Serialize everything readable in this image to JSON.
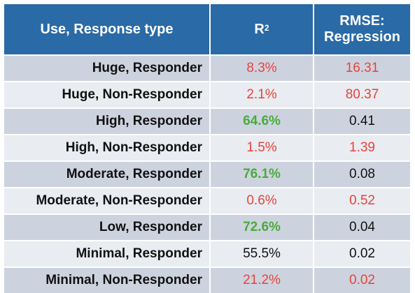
{
  "chart_data": {
    "type": "table",
    "columns": [
      "Use, Response type",
      "R²",
      "RMSE: Regression"
    ],
    "header": {
      "col1": "Use, Response type",
      "col2_base": "R",
      "col2_sup": "2",
      "col3_line1": "RMSE:",
      "col3_line2": "Regression"
    },
    "rows": [
      {
        "label": "Huge, Responder",
        "r2": "8.3%",
        "r2_color": "#e8423c",
        "rmse": "16.31",
        "rmse_color": "#e8423c"
      },
      {
        "label": "Huge, Non-Responder",
        "r2": "2.1%",
        "r2_color": "#e8423c",
        "rmse": "80.37",
        "rmse_color": "#e8423c"
      },
      {
        "label": "High, Responder",
        "r2": "64.6%",
        "r2_color": "#4aab3c",
        "r2_bold": true,
        "rmse": "0.41",
        "rmse_color": "#111111"
      },
      {
        "label": "High, Non-Responder",
        "r2": "1.5%",
        "r2_color": "#e8423c",
        "rmse": "1.39",
        "rmse_color": "#e8423c"
      },
      {
        "label": "Moderate, Responder",
        "r2": "76.1%",
        "r2_color": "#4aab3c",
        "r2_bold": true,
        "rmse": "0.08",
        "rmse_color": "#111111"
      },
      {
        "label": "Moderate, Non-Responder",
        "r2": "0.6%",
        "r2_color": "#e8423c",
        "rmse": "0.52",
        "rmse_color": "#e8423c"
      },
      {
        "label": "Low, Responder",
        "r2": "72.6%",
        "r2_color": "#4aab3c",
        "r2_bold": true,
        "rmse": "0.04",
        "rmse_color": "#111111"
      },
      {
        "label": "Minimal, Responder",
        "r2": "55.5%",
        "r2_color": "#111111",
        "rmse": "0.02",
        "rmse_color": "#111111"
      },
      {
        "label": "Minimal, Non-Responder",
        "r2": "21.2%",
        "r2_color": "#e8423c",
        "rmse": "0.02",
        "rmse_color": "#e8423c"
      }
    ]
  }
}
